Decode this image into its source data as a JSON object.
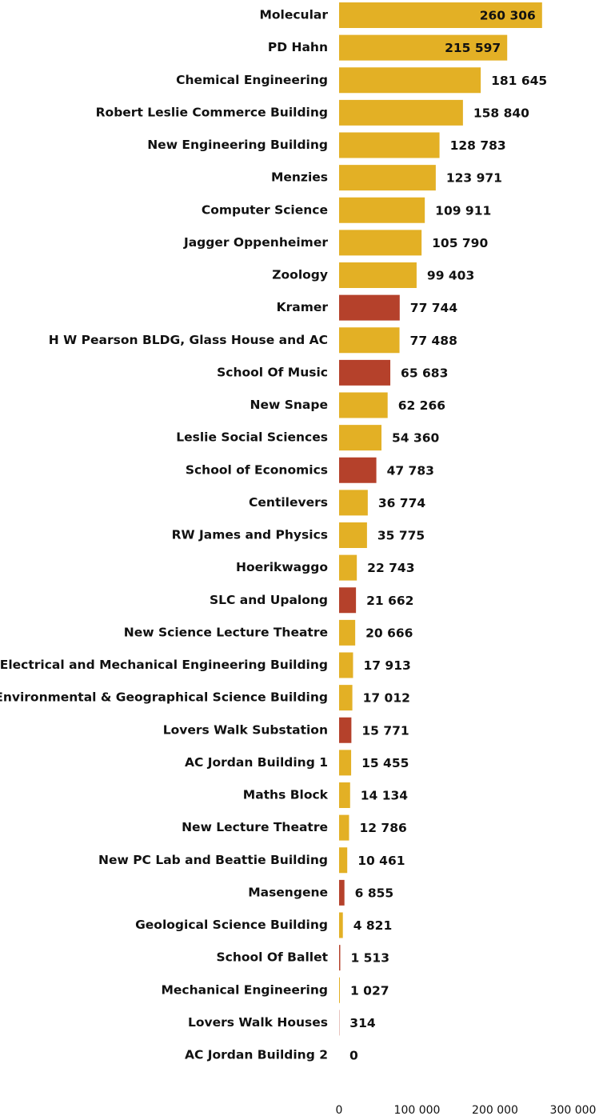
{
  "chart_data": {
    "type": "barh",
    "categories": [
      "Molecular",
      "PD Hahn",
      "Chemical Engineering",
      "Robert Leslie Commerce Building",
      "New Engineering Building",
      "Menzies",
      "Computer Science",
      "Jagger Oppenheimer",
      "Zoology",
      "Kramer",
      "H W Pearson BLDG, Glass House and AC",
      "School Of Music",
      "New Snape",
      "Leslie Social Sciences",
      "School of Economics",
      "Centilevers",
      "RW James and Physics",
      "Hoerikwaggo",
      "SLC and Upalong",
      "New Science Lecture Theatre",
      "Electrical and Mechanical Engineering Building",
      "Environmental & Geographical Science Building",
      "Lovers Walk Substation",
      "AC Jordan Building 1",
      "Maths Block",
      "New Lecture Theatre",
      "New PC Lab and Beattie Building",
      "Masengene",
      "Geological Science Building",
      "School Of Ballet",
      "Mechanical Engineering",
      "Lovers Walk Houses",
      "AC Jordan Building 2"
    ],
    "values": [
      260306,
      215597,
      181645,
      158840,
      128783,
      123971,
      109911,
      105790,
      99403,
      77744,
      77488,
      65683,
      62266,
      54360,
      47783,
      36774,
      35775,
      22743,
      21662,
      20666,
      17913,
      17012,
      15771,
      15455,
      14134,
      12786,
      10461,
      6855,
      4821,
      1513,
      1027,
      314,
      0
    ],
    "value_labels": [
      "260 306",
      "215 597",
      "181 645",
      "158 840",
      "128 783",
      "123 971",
      "109 911",
      "105 790",
      "99 403",
      "77 744",
      "77 488",
      "65 683",
      "62 266",
      "54 360",
      "47 783",
      "36 774",
      "35 775",
      "22 743",
      "21 662",
      "20 666",
      "17 913",
      "17 012",
      "15 771",
      "15 455",
      "14 134",
      "12 786",
      "10 461",
      "6 855",
      "4 821",
      "1 513",
      "1 027",
      "314",
      "0"
    ],
    "colors": [
      "#e3b025",
      "#e3b025",
      "#e3b025",
      "#e3b025",
      "#e3b025",
      "#e3b025",
      "#e3b025",
      "#e3b025",
      "#e3b025",
      "#b5412b",
      "#e3b025",
      "#b5412b",
      "#e3b025",
      "#e3b025",
      "#b5412b",
      "#e3b025",
      "#e3b025",
      "#e3b025",
      "#b5412b",
      "#e3b025",
      "#e3b025",
      "#e3b025",
      "#b5412b",
      "#e3b025",
      "#e3b025",
      "#e3b025",
      "#e3b025",
      "#b5412b",
      "#e3b025",
      "#b5412b",
      "#e3b025",
      "#b5412b",
      "#e3b025"
    ],
    "xlim": [
      0,
      300000
    ],
    "xticks": [
      0,
      {
        "value": 100000,
        "label": "100 000"
      },
      {
        "value": 200000,
        "label": "200 000"
      },
      {
        "value": 300000,
        "label": "300 000"
      }
    ]
  }
}
